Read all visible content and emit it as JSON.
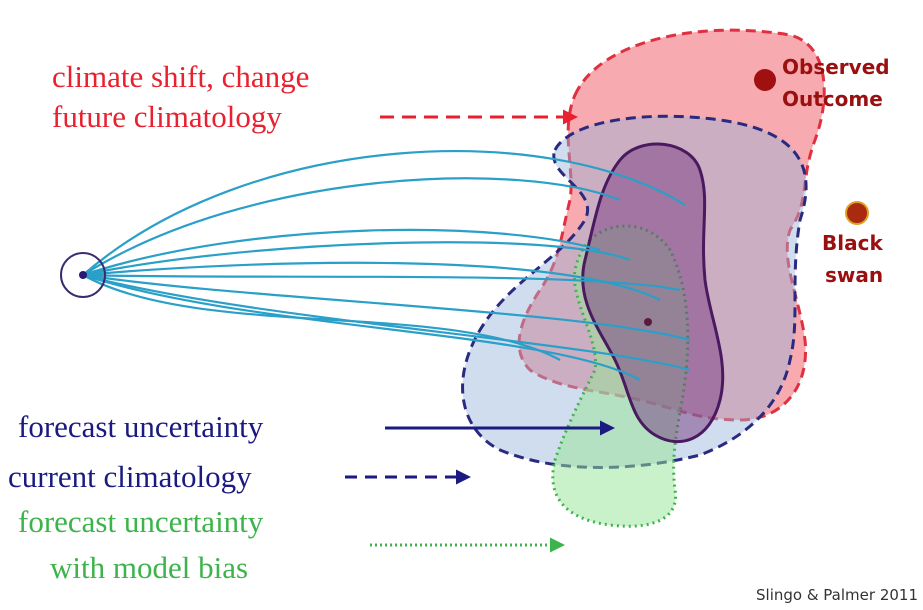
{
  "labels": {
    "climate_shift": [
      "climate shift, change",
      "future climatology"
    ],
    "observed_outcome": [
      "Observed",
      "Outcome"
    ],
    "black_swan": [
      "Black",
      "swan"
    ],
    "forecast_uncertainty": "forecast uncertainty",
    "current_climatology": "current climatology",
    "model_bias": [
      "forecast uncertainty",
      "with model bias"
    ]
  },
  "credit": "Slingo & Palmer 2011"
}
